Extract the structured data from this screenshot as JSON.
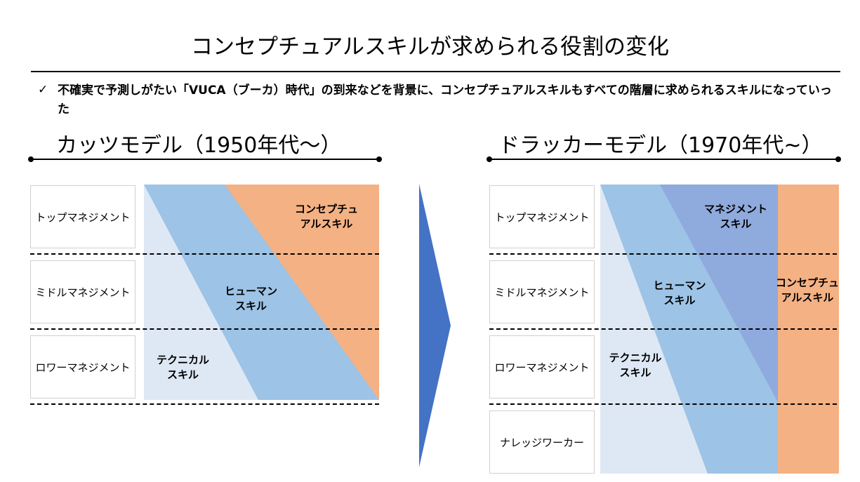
{
  "title": "コンセプチュアルスキルが求められる役割の変化",
  "bullet": {
    "icon": "check-icon",
    "text": "不確実で予測しがたい「VUCA（ブーカ）時代」の到来などを背景に、コンセプチュアルスキルもすべての階層に求められるスキルになっていった"
  },
  "katz": {
    "title": "カッツモデル（1950年代～）",
    "levels": [
      "トップマネジメント",
      "ミドルマネジメント",
      "ロワーマネジメント"
    ],
    "skills": {
      "conceptual": [
        "コンセプチュ",
        "アルスキル"
      ],
      "human": [
        "ヒューマン",
        "スキル"
      ],
      "technical": [
        "テクニカル",
        "スキル"
      ]
    }
  },
  "drucker": {
    "title": "ドラッカーモデル（1970年代~）",
    "levels": [
      "トップマネジメント",
      "ミドルマネジメント",
      "ロワーマネジメント",
      "ナレッジワーカー"
    ],
    "skills": {
      "management": [
        "マネジメント",
        "スキル"
      ],
      "human": [
        "ヒューマン",
        "スキル"
      ],
      "technical": [
        "テクニカル",
        "スキル"
      ],
      "conceptual": [
        "コンセプチュ",
        "アルスキル"
      ]
    }
  },
  "colors": {
    "technical": "#dee8f4",
    "human": "#9dc3e6",
    "conceptual": "#f4b183",
    "management": "#8faadc",
    "arrow": "#4472c4"
  }
}
